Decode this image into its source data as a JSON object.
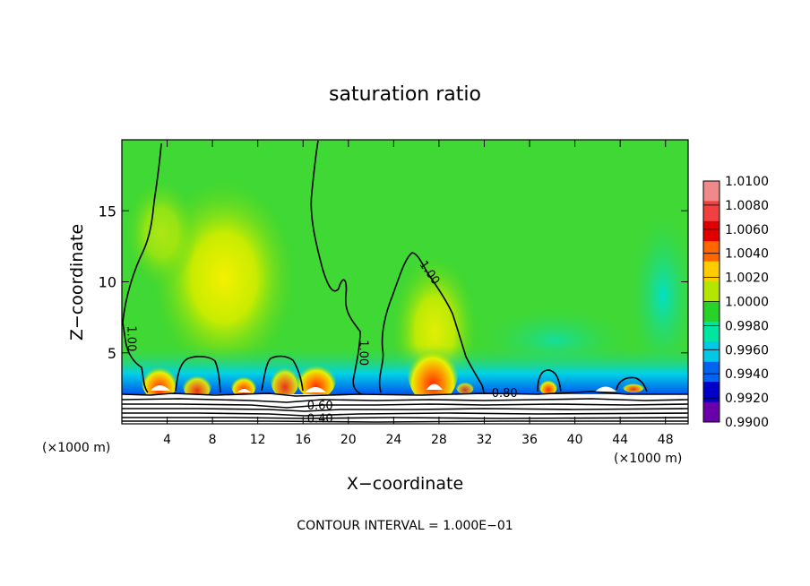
{
  "chart_data": {
    "type": "heatmap",
    "title": "saturation ratio",
    "xlabel": "X−coordinate",
    "ylabel": "Z−coordinate",
    "x_unit_left": "(×1000 m)",
    "x_unit_right": "(×1000 m)",
    "xlim": [
      0,
      50
    ],
    "ylim": [
      0,
      20
    ],
    "x_ticks": [
      4,
      8,
      12,
      16,
      20,
      24,
      28,
      32,
      36,
      40,
      44,
      48
    ],
    "y_ticks": [
      5,
      10,
      15
    ],
    "colorbar": {
      "levels": [
        "1.0100",
        "1.0080",
        "1.0060",
        "1.0040",
        "1.0020",
        "1.0000",
        "0.9980",
        "0.9960",
        "0.9940",
        "0.9920",
        "0.9900"
      ],
      "colors": [
        "#f08a8a",
        "#f04040",
        "#e00000",
        "#ff6600",
        "#ffcc00",
        "#b4e600",
        "#28d228",
        "#00e6a0",
        "#00c8e6",
        "#0064f0",
        "#0000c8",
        "#6a00a8"
      ]
    },
    "contour_labels": [
      {
        "text": "1.00",
        "x": 0.5,
        "z": 6.0
      },
      {
        "text": "1.00",
        "x": 21.0,
        "z": 5.0
      },
      {
        "text": "1.00",
        "x": 26.9,
        "z": 10.5
      },
      {
        "text": "0.80",
        "x": 33.8,
        "z": 1.9
      },
      {
        "text": "0.60",
        "x": 17.5,
        "z": 1.0
      },
      {
        "text": "0.40",
        "x": 17.5,
        "z": 0.1
      }
    ],
    "footnote": "CONTOUR INTERVAL = 1.000E−01"
  }
}
